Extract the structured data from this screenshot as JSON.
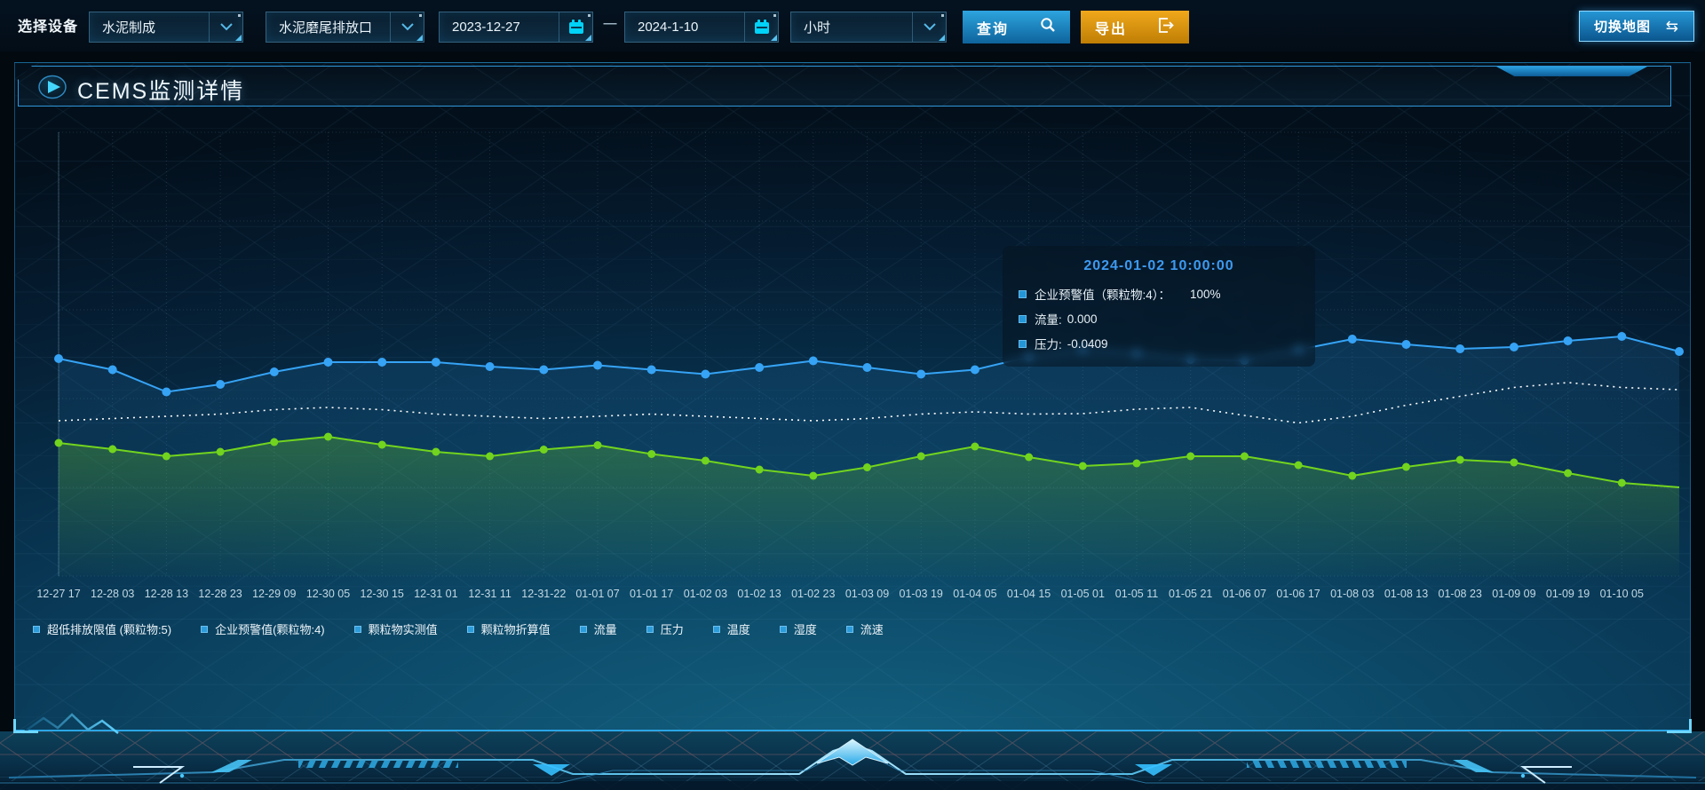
{
  "toolbar": {
    "device_label": "选择设备",
    "device_value": "水泥制成",
    "outlet_value": "水泥磨尾排放口",
    "date_start": "2023-12-27",
    "range_separator": "—",
    "date_end": "2024-1-10",
    "interval_value": "小时",
    "query_label": "查询",
    "export_label": "导出",
    "switch_map_label": "切换地图",
    "switch_map_icon": "⇆"
  },
  "panel": {
    "title": "CEMS监测详情"
  },
  "tooltip": {
    "title": "2024-01-02 10:00:00",
    "items": [
      {
        "label": "企业预警值（颗粒物:4）：",
        "value": "100%"
      },
      {
        "label": "流量:",
        "value": "0.000"
      },
      {
        "label": "压力:",
        "value": "-0.0409"
      }
    ]
  },
  "legend": {
    "marker_color": "#2d9cdb",
    "items": [
      "超低排放限值 (颗粒物:5)",
      "企业预警值(颗粒物:4)",
      "颗粒物实测值",
      "颗粒物折算值",
      "流量",
      "压力",
      "温度",
      "湿度",
      "流速"
    ]
  },
  "chart_data": {
    "type": "line",
    "title": "CEMS监测详情",
    "xlabel": "",
    "ylabel": "",
    "ylim": [
      0,
      100
    ],
    "grid": true,
    "legend_position": "bottom",
    "x_label_color": "#c2d8e4",
    "x": [
      "12-27 17",
      "12-28 03",
      "12-28 13",
      "12-28 23",
      "12-29 09",
      "12-30 05",
      "12-30 15",
      "12-31 01",
      "12-31 11",
      "12-31-22",
      "01-01 07",
      "01-01 17",
      "01-02 03",
      "01-02 13",
      "01-02 23",
      "01-03 09",
      "01-03 19",
      "01-04 05",
      "01-04 15",
      "01-05 01",
      "01-05 11",
      "01-05 21",
      "01-06 07",
      "01-06 17",
      "01-08 03",
      "01-08 13",
      "01-08 23",
      "01-09 09",
      "01-09 19",
      "01-10 05"
    ],
    "series": [
      {
        "name": "企业预警值(颗粒物:4)",
        "color": "#36a3f5",
        "line_style": "solid",
        "markers": true,
        "marker_r": 5,
        "edge_marker": true,
        "area_from": "rgba(50,160,240,0.14)",
        "area_to": "rgba(50,160,240,0)",
        "values": [
          49,
          46.5,
          41.5,
          43.2,
          46,
          48.2,
          48.2,
          48.2,
          47.2,
          46.5,
          47.5,
          46.5,
          45.5,
          47,
          48.5,
          47,
          45.5,
          46.5,
          49.4,
          51,
          50.2,
          48.8,
          48.6,
          51,
          53.4,
          52.2,
          51.2,
          51.6,
          53,
          54
        ],
        "edge_value": 50.6
      },
      {
        "name": "流量",
        "color": "#ffffff",
        "line_style": "dotted",
        "markers": false,
        "marker_r": 0,
        "edge_marker": false,
        "values": [
          35,
          35.5,
          36,
          36.5,
          37.5,
          38,
          37.5,
          36.5,
          36,
          35.5,
          36,
          36.5,
          36,
          35.5,
          35,
          35.5,
          36.5,
          37,
          36.5,
          36.6,
          37.6,
          38,
          36.2,
          34.5,
          36,
          38.5,
          40.5,
          42.5,
          43.6,
          42.5
        ],
        "edge_value": 42
      },
      {
        "name": "压力",
        "color": "#72d41e",
        "line_style": "solid",
        "markers": true,
        "marker_r": 4.5,
        "edge_marker": false,
        "area_from": "rgba(110,205,35,0.30)",
        "area_to": "rgba(110,205,35,0.02)",
        "values": [
          30,
          28.6,
          27,
          28,
          30.2,
          31.4,
          29.6,
          28,
          27,
          28.5,
          29.5,
          27.5,
          26,
          24,
          22.6,
          24.5,
          27,
          29.2,
          26.8,
          24.8,
          25.4,
          27,
          27,
          25,
          22.6,
          24.6,
          26.2,
          25.6,
          23.2,
          21
        ],
        "edge_value": 20
      }
    ]
  }
}
